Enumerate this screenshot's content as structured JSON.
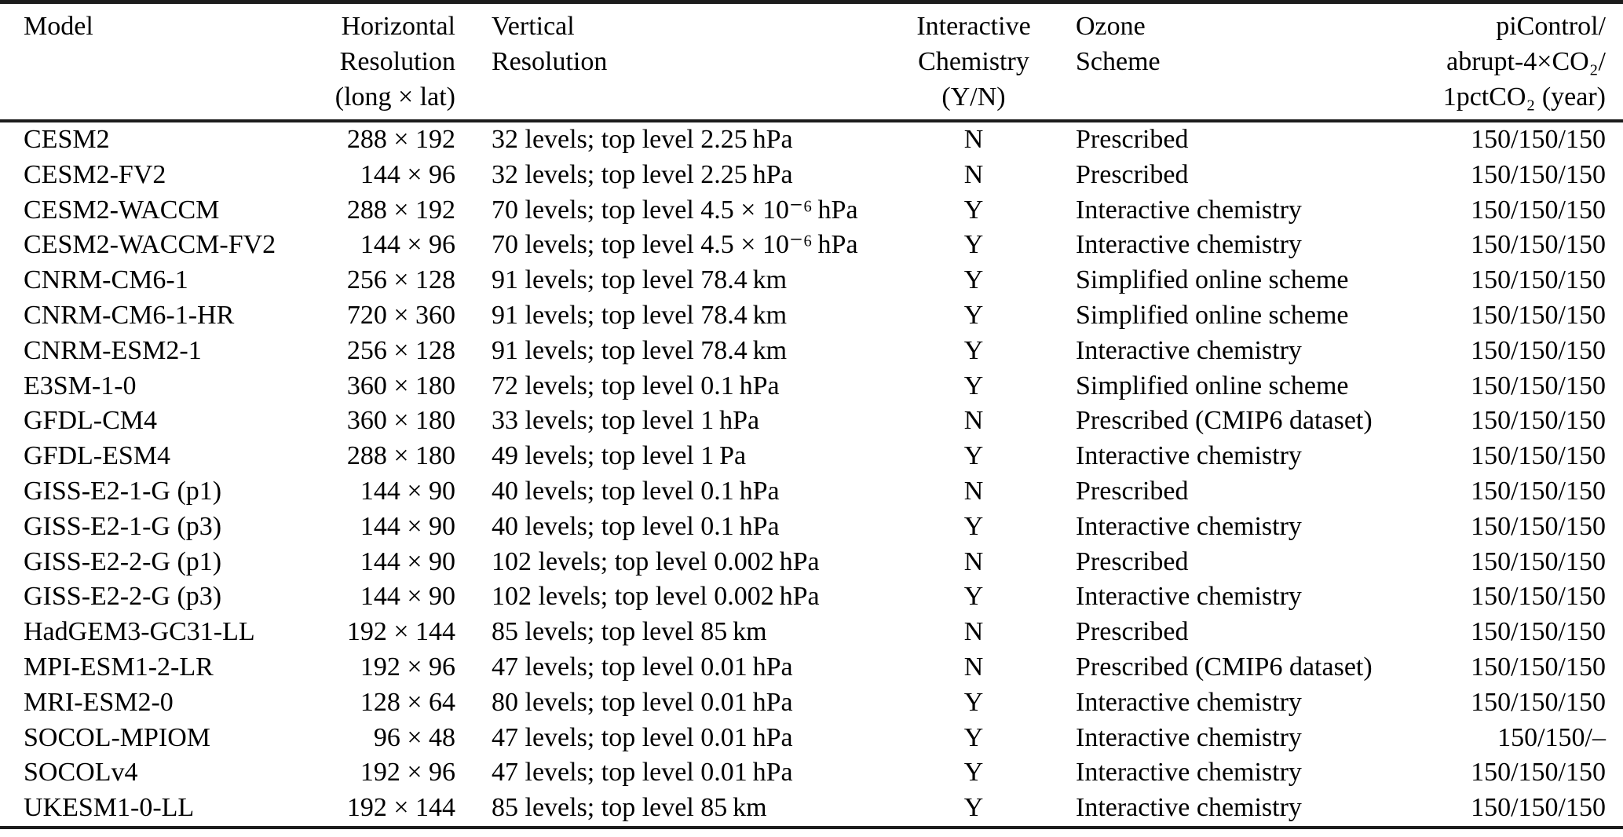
{
  "colors": {
    "background": "#ffffff",
    "text": "#000000",
    "rule": "#1c1c1c"
  },
  "table": {
    "columns": [
      {
        "id": "model",
        "align": "left",
        "lines": [
          "Model"
        ]
      },
      {
        "id": "horizontal-resolution",
        "align": "right",
        "lines": [
          "Horizontal",
          "Resolution",
          "(long × lat)"
        ]
      },
      {
        "id": "vertical-resolution",
        "align": "left",
        "lines": [
          "Vertical",
          "Resolution"
        ]
      },
      {
        "id": "interactive-chemistry",
        "align": "center",
        "lines": [
          "Interactive",
          "Chemistry",
          "(Y/N)"
        ]
      },
      {
        "id": "ozone-scheme",
        "align": "left",
        "lines": [
          "Ozone",
          "Scheme"
        ]
      },
      {
        "id": "experiment-years",
        "align": "right",
        "lines": [
          "piControl/",
          "abrupt-4×CO₂/",
          "1pctCO₂ (year)"
        ]
      }
    ],
    "rows": [
      [
        "CESM2",
        "288 × 192",
        "32 levels; top level 2.25 hPa",
        "N",
        "Prescribed",
        "150/150/150"
      ],
      [
        "CESM2-FV2",
        "144 × 96",
        "32 levels; top level 2.25 hPa",
        "N",
        "Prescribed",
        "150/150/150"
      ],
      [
        "CESM2-WACCM",
        "288 × 192",
        "70 levels; top level 4.5 × 10⁻⁶ hPa",
        "Y",
        "Interactive chemistry",
        "150/150/150"
      ],
      [
        "CESM2-WACCM-FV2",
        "144 × 96",
        "70 levels; top level 4.5 × 10⁻⁶ hPa",
        "Y",
        "Interactive chemistry",
        "150/150/150"
      ],
      [
        "CNRM-CM6-1",
        "256 × 128",
        "91 levels; top level 78.4 km",
        "Y",
        "Simplified online scheme",
        "150/150/150"
      ],
      [
        "CNRM-CM6-1-HR",
        "720 × 360",
        "91 levels; top level 78.4 km",
        "Y",
        "Simplified online scheme",
        "150/150/150"
      ],
      [
        "CNRM-ESM2-1",
        "256 × 128",
        "91 levels; top level 78.4 km",
        "Y",
        "Interactive chemistry",
        "150/150/150"
      ],
      [
        "E3SM-1-0",
        "360 × 180",
        "72 levels; top level 0.1 hPa",
        "Y",
        "Simplified online scheme",
        "150/150/150"
      ],
      [
        "GFDL-CM4",
        "360 × 180",
        "33 levels; top level 1 hPa",
        "N",
        "Prescribed (CMIP6 dataset)",
        "150/150/150"
      ],
      [
        "GFDL-ESM4",
        "288 × 180",
        "49 levels; top level 1 Pa",
        "Y",
        "Interactive chemistry",
        "150/150/150"
      ],
      [
        "GISS-E2-1-G (p1)",
        "144 × 90",
        "40 levels; top level 0.1 hPa",
        "N",
        "Prescribed",
        "150/150/150"
      ],
      [
        "GISS-E2-1-G (p3)",
        "144 × 90",
        "40 levels; top level 0.1 hPa",
        "Y",
        "Interactive chemistry",
        "150/150/150"
      ],
      [
        "GISS-E2-2-G (p1)",
        "144 × 90",
        "102 levels; top level 0.002 hPa",
        "N",
        "Prescribed",
        "150/150/150"
      ],
      [
        "GISS-E2-2-G (p3)",
        "144 × 90",
        "102 levels; top level 0.002 hPa",
        "Y",
        "Interactive chemistry",
        "150/150/150"
      ],
      [
        "HadGEM3-GC31-LL",
        "192 × 144",
        "85 levels; top level 85 km",
        "N",
        "Prescribed",
        "150/150/150"
      ],
      [
        "MPI-ESM1-2-LR",
        "192 × 96",
        "47 levels; top level 0.01 hPa",
        "N",
        "Prescribed (CMIP6 dataset)",
        "150/150/150"
      ],
      [
        "MRI-ESM2-0",
        "128 × 64",
        "80 levels; top level 0.01 hPa",
        "Y",
        "Interactive chemistry",
        "150/150/150"
      ],
      [
        "SOCOL-MPIOM",
        "96 × 48",
        "47 levels; top level 0.01 hPa",
        "Y",
        "Interactive chemistry",
        "150/150/–"
      ],
      [
        "SOCOLv4",
        "192 × 96",
        "47 levels; top level 0.01 hPa",
        "Y",
        "Interactive chemistry",
        "150/150/150"
      ],
      [
        "UKESM1-0-LL",
        "192 × 144",
        "85 levels; top level 85 km",
        "Y",
        "Interactive chemistry",
        "150/150/150"
      ]
    ]
  }
}
